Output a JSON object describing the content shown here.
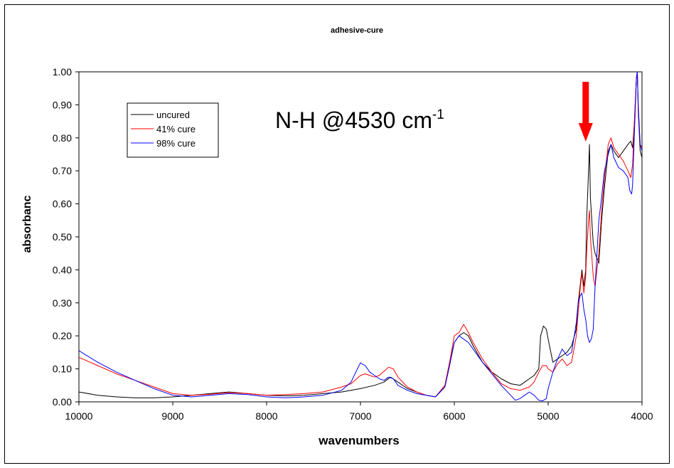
{
  "chart_data": {
    "type": "line",
    "title": "adhesive-cure",
    "xlabel": "wavenumbers",
    "ylabel": "absorbanc",
    "xlim": [
      10000,
      4000
    ],
    "ylim": [
      0,
      1
    ],
    "x_reversed": true,
    "grid": false,
    "legend_position": "top-left",
    "xticks": [
      "10000",
      "9000",
      "8000",
      "7000",
      "6000",
      "5000",
      "4000"
    ],
    "yticks": [
      "0.00",
      "0.10",
      "0.20",
      "0.30",
      "0.40",
      "0.50",
      "0.60",
      "0.70",
      "0.80",
      "0.90",
      "1.00"
    ],
    "annotation": {
      "main": "N-H @4530 cm",
      "sup": "-1",
      "arrow_x": 4600,
      "arrow_color": "#ff0000"
    },
    "series": [
      {
        "name": "uncured",
        "color": "#000000",
        "points": [
          [
            10000,
            0.03
          ],
          [
            9800,
            0.02
          ],
          [
            9600,
            0.015
          ],
          [
            9400,
            0.012
          ],
          [
            9200,
            0.012
          ],
          [
            9000,
            0.015
          ],
          [
            8800,
            0.02
          ],
          [
            8600,
            0.025
          ],
          [
            8400,
            0.03
          ],
          [
            8200,
            0.025
          ],
          [
            8000,
            0.02
          ],
          [
            7800,
            0.018
          ],
          [
            7600,
            0.02
          ],
          [
            7400,
            0.025
          ],
          [
            7200,
            0.03
          ],
          [
            7000,
            0.04
          ],
          [
            6850,
            0.05
          ],
          [
            6750,
            0.06
          ],
          [
            6680,
            0.075
          ],
          [
            6600,
            0.06
          ],
          [
            6500,
            0.04
          ],
          [
            6400,
            0.03
          ],
          [
            6300,
            0.02
          ],
          [
            6200,
            0.015
          ],
          [
            6100,
            0.05
          ],
          [
            6050,
            0.12
          ],
          [
            6000,
            0.18
          ],
          [
            5950,
            0.2
          ],
          [
            5900,
            0.21
          ],
          [
            5850,
            0.2
          ],
          [
            5800,
            0.17
          ],
          [
            5700,
            0.12
          ],
          [
            5600,
            0.09
          ],
          [
            5500,
            0.07
          ],
          [
            5400,
            0.055
          ],
          [
            5300,
            0.05
          ],
          [
            5250,
            0.06
          ],
          [
            5200,
            0.07
          ],
          [
            5150,
            0.08
          ],
          [
            5100,
            0.1
          ],
          [
            5080,
            0.2
          ],
          [
            5050,
            0.23
          ],
          [
            5020,
            0.22
          ],
          [
            5000,
            0.19
          ],
          [
            4950,
            0.12
          ],
          [
            4900,
            0.13
          ],
          [
            4850,
            0.14
          ],
          [
            4800,
            0.15
          ],
          [
            4750,
            0.17
          ],
          [
            4700,
            0.22
          ],
          [
            4680,
            0.3
          ],
          [
            4660,
            0.35
          ],
          [
            4640,
            0.4
          ],
          [
            4620,
            0.35
          ],
          [
            4600,
            0.4
          ],
          [
            4590,
            0.55
          ],
          [
            4570,
            0.7
          ],
          [
            4560,
            0.78
          ],
          [
            4550,
            0.62
          ],
          [
            4520,
            0.48
          ],
          [
            4500,
            0.45
          ],
          [
            4460,
            0.42
          ],
          [
            4430,
            0.55
          ],
          [
            4400,
            0.65
          ],
          [
            4360,
            0.76
          ],
          [
            4330,
            0.78
          ],
          [
            4300,
            0.76
          ],
          [
            4250,
            0.74
          ],
          [
            4200,
            0.76
          ],
          [
            4150,
            0.78
          ],
          [
            4120,
            0.79
          ],
          [
            4100,
            0.77
          ],
          [
            4080,
            0.85
          ],
          [
            4060,
            0.98
          ],
          [
            4050,
            1.0
          ],
          [
            4040,
            0.88
          ],
          [
            4020,
            0.76
          ],
          [
            4000,
            0.74
          ]
        ]
      },
      {
        "name": "41% cure",
        "color": "#ff0000",
        "points": [
          [
            10000,
            0.135
          ],
          [
            9800,
            0.11
          ],
          [
            9600,
            0.085
          ],
          [
            9400,
            0.065
          ],
          [
            9200,
            0.045
          ],
          [
            9000,
            0.025
          ],
          [
            8800,
            0.02
          ],
          [
            8600,
            0.023
          ],
          [
            8400,
            0.028
          ],
          [
            8200,
            0.025
          ],
          [
            8000,
            0.02
          ],
          [
            7800,
            0.022
          ],
          [
            7600,
            0.025
          ],
          [
            7400,
            0.03
          ],
          [
            7200,
            0.045
          ],
          [
            7100,
            0.055
          ],
          [
            7000,
            0.08
          ],
          [
            6950,
            0.085
          ],
          [
            6900,
            0.08
          ],
          [
            6850,
            0.075
          ],
          [
            6800,
            0.08
          ],
          [
            6700,
            0.105
          ],
          [
            6650,
            0.1
          ],
          [
            6600,
            0.075
          ],
          [
            6500,
            0.045
          ],
          [
            6400,
            0.03
          ],
          [
            6300,
            0.02
          ],
          [
            6200,
            0.015
          ],
          [
            6100,
            0.05
          ],
          [
            6050,
            0.12
          ],
          [
            6000,
            0.2
          ],
          [
            5950,
            0.21
          ],
          [
            5920,
            0.225
          ],
          [
            5900,
            0.235
          ],
          [
            5850,
            0.21
          ],
          [
            5800,
            0.18
          ],
          [
            5700,
            0.13
          ],
          [
            5600,
            0.09
          ],
          [
            5500,
            0.055
          ],
          [
            5400,
            0.04
          ],
          [
            5300,
            0.035
          ],
          [
            5250,
            0.04
          ],
          [
            5200,
            0.045
          ],
          [
            5150,
            0.06
          ],
          [
            5100,
            0.09
          ],
          [
            5060,
            0.11
          ],
          [
            5020,
            0.11
          ],
          [
            5000,
            0.1
          ],
          [
            4950,
            0.09
          ],
          [
            4900,
            0.115
          ],
          [
            4850,
            0.13
          ],
          [
            4800,
            0.11
          ],
          [
            4750,
            0.12
          ],
          [
            4700,
            0.2
          ],
          [
            4680,
            0.27
          ],
          [
            4660,
            0.34
          ],
          [
            4640,
            0.39
          ],
          [
            4620,
            0.33
          ],
          [
            4600,
            0.38
          ],
          [
            4590,
            0.45
          ],
          [
            4570,
            0.55
          ],
          [
            4560,
            0.58
          ],
          [
            4550,
            0.5
          ],
          [
            4520,
            0.38
          ],
          [
            4500,
            0.35
          ],
          [
            4460,
            0.45
          ],
          [
            4430,
            0.58
          ],
          [
            4400,
            0.68
          ],
          [
            4360,
            0.78
          ],
          [
            4330,
            0.8
          ],
          [
            4300,
            0.77
          ],
          [
            4250,
            0.75
          ],
          [
            4200,
            0.73
          ],
          [
            4150,
            0.7
          ],
          [
            4120,
            0.68
          ],
          [
            4100,
            0.72
          ],
          [
            4080,
            0.86
          ],
          [
            4060,
            0.98
          ],
          [
            4050,
            1.0
          ],
          [
            4040,
            0.89
          ],
          [
            4020,
            0.78
          ],
          [
            4000,
            0.77
          ]
        ]
      },
      {
        "name": "98% cure",
        "color": "#0000ff",
        "points": [
          [
            10000,
            0.155
          ],
          [
            9800,
            0.12
          ],
          [
            9600,
            0.09
          ],
          [
            9400,
            0.065
          ],
          [
            9200,
            0.04
          ],
          [
            9000,
            0.02
          ],
          [
            8800,
            0.015
          ],
          [
            8600,
            0.02
          ],
          [
            8400,
            0.025
          ],
          [
            8200,
            0.022
          ],
          [
            8000,
            0.015
          ],
          [
            7800,
            0.012
          ],
          [
            7600,
            0.015
          ],
          [
            7400,
            0.02
          ],
          [
            7200,
            0.035
          ],
          [
            7100,
            0.06
          ],
          [
            7050,
            0.09
          ],
          [
            7000,
            0.118
          ],
          [
            6950,
            0.11
          ],
          [
            6900,
            0.09
          ],
          [
            6850,
            0.08
          ],
          [
            6800,
            0.07
          ],
          [
            6750,
            0.065
          ],
          [
            6700,
            0.075
          ],
          [
            6650,
            0.07
          ],
          [
            6600,
            0.05
          ],
          [
            6500,
            0.035
          ],
          [
            6400,
            0.025
          ],
          [
            6300,
            0.02
          ],
          [
            6200,
            0.015
          ],
          [
            6100,
            0.045
          ],
          [
            6050,
            0.11
          ],
          [
            6000,
            0.18
          ],
          [
            5950,
            0.2
          ],
          [
            5900,
            0.19
          ],
          [
            5850,
            0.18
          ],
          [
            5800,
            0.16
          ],
          [
            5700,
            0.12
          ],
          [
            5600,
            0.085
          ],
          [
            5500,
            0.05
          ],
          [
            5400,
            0.02
          ],
          [
            5350,
            0.005
          ],
          [
            5300,
            0.01
          ],
          [
            5250,
            0.02
          ],
          [
            5200,
            0.03
          ],
          [
            5150,
            0.02
          ],
          [
            5100,
            0.005
          ],
          [
            5060,
            0.003
          ],
          [
            5020,
            0.01
          ],
          [
            5000,
            0.04
          ],
          [
            4950,
            0.09
          ],
          [
            4900,
            0.13
          ],
          [
            4850,
            0.16
          ],
          [
            4800,
            0.14
          ],
          [
            4750,
            0.15
          ],
          [
            4700,
            0.24
          ],
          [
            4680,
            0.3
          ],
          [
            4660,
            0.32
          ],
          [
            4640,
            0.33
          ],
          [
            4620,
            0.28
          ],
          [
            4600,
            0.25
          ],
          [
            4580,
            0.2
          ],
          [
            4560,
            0.18
          ],
          [
            4540,
            0.19
          ],
          [
            4520,
            0.22
          ],
          [
            4500,
            0.35
          ],
          [
            4460,
            0.55
          ],
          [
            4430,
            0.62
          ],
          [
            4400,
            0.7
          ],
          [
            4360,
            0.75
          ],
          [
            4330,
            0.78
          ],
          [
            4300,
            0.74
          ],
          [
            4250,
            0.71
          ],
          [
            4200,
            0.7
          ],
          [
            4150,
            0.68
          ],
          [
            4130,
            0.64
          ],
          [
            4110,
            0.63
          ],
          [
            4100,
            0.66
          ],
          [
            4080,
            0.82
          ],
          [
            4060,
            0.98
          ],
          [
            4050,
            1.0
          ],
          [
            4040,
            0.9
          ],
          [
            4020,
            0.78
          ],
          [
            4000,
            0.76
          ]
        ]
      }
    ]
  }
}
